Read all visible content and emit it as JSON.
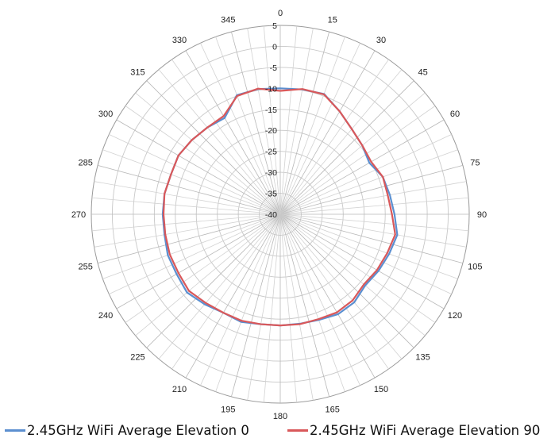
{
  "chart_data": {
    "type": "radar",
    "polar": true,
    "angle_direction": "clockwise",
    "zero_angle": "top",
    "angles": [
      0,
      15,
      30,
      45,
      60,
      75,
      90,
      105,
      120,
      135,
      150,
      165,
      180,
      195,
      210,
      225,
      240,
      255,
      270,
      285,
      300,
      315,
      330,
      345
    ],
    "angle_labels": [
      "0",
      "15",
      "30",
      "45",
      "60",
      "75",
      "90",
      "105",
      "120",
      "135",
      "150",
      "165",
      "180",
      "195",
      "210",
      "225",
      "240",
      "255",
      "270",
      "285",
      "300",
      "315",
      "330",
      "345"
    ],
    "radial_range": [
      -40,
      5
    ],
    "radial_ticks": [
      5,
      0,
      -5,
      -10,
      -15,
      -20,
      -25,
      -30,
      -35,
      -40
    ],
    "radial_tick_labels": [
      "5",
      "0",
      "-5",
      "-10",
      "-15",
      "-20",
      "-25",
      "-30",
      "-35",
      "-40"
    ],
    "grid": true,
    "legend_position": "bottom",
    "series": [
      {
        "name": "2.45GHz WiFi Average Elevation 0",
        "color": "#5b8fd0",
        "angles": [
          0,
          10,
          20,
          30,
          40,
          50,
          60,
          70,
          80,
          90,
          100,
          110,
          120,
          130,
          140,
          150,
          160,
          170,
          180,
          190,
          200,
          210,
          220,
          230,
          240,
          250,
          260,
          270,
          280,
          290,
          300,
          310,
          320,
          330,
          340,
          350
        ],
        "values": [
          -10,
          -9.8,
          -9.5,
          -11.7,
          -13.5,
          -14.5,
          -15.5,
          -14.0,
          -13.5,
          -12.8,
          -11.7,
          -12.4,
          -13.0,
          -13.6,
          -12.6,
          -12.5,
          -13.2,
          -13.5,
          -13.5,
          -13.4,
          -12.7,
          -12.9,
          -12.0,
          -11.0,
          -11.5,
          -11.5,
          -12.0,
          -12.0,
          -12.0,
          -12.3,
          -12.0,
          -12.5,
          -13.0,
          -13.5,
          -9.8,
          -9.7
        ]
      },
      {
        "name": "2.45GHz WiFi Average Elevation 90",
        "color": "#d9585a",
        "angles": [
          0,
          10,
          20,
          30,
          40,
          50,
          60,
          70,
          80,
          90,
          100,
          110,
          120,
          130,
          140,
          150,
          160,
          170,
          180,
          190,
          200,
          210,
          220,
          230,
          240,
          250,
          260,
          270,
          280,
          290,
          300,
          310,
          320,
          330,
          340,
          350
        ],
        "values": [
          -10.6,
          -9.7,
          -9.6,
          -11.7,
          -13.5,
          -14.5,
          -15.0,
          -14.0,
          -14.0,
          -13.4,
          -12.2,
          -12.9,
          -13.4,
          -14.0,
          -13.2,
          -13.0,
          -13.4,
          -13.4,
          -13.5,
          -13.4,
          -13.0,
          -12.9,
          -12.4,
          -11.6,
          -12.0,
          -12.0,
          -12.2,
          -12.2,
          -12.0,
          -12.3,
          -12.0,
          -12.5,
          -13.0,
          -13.0,
          -10.0,
          -9.6
        ]
      }
    ]
  }
}
